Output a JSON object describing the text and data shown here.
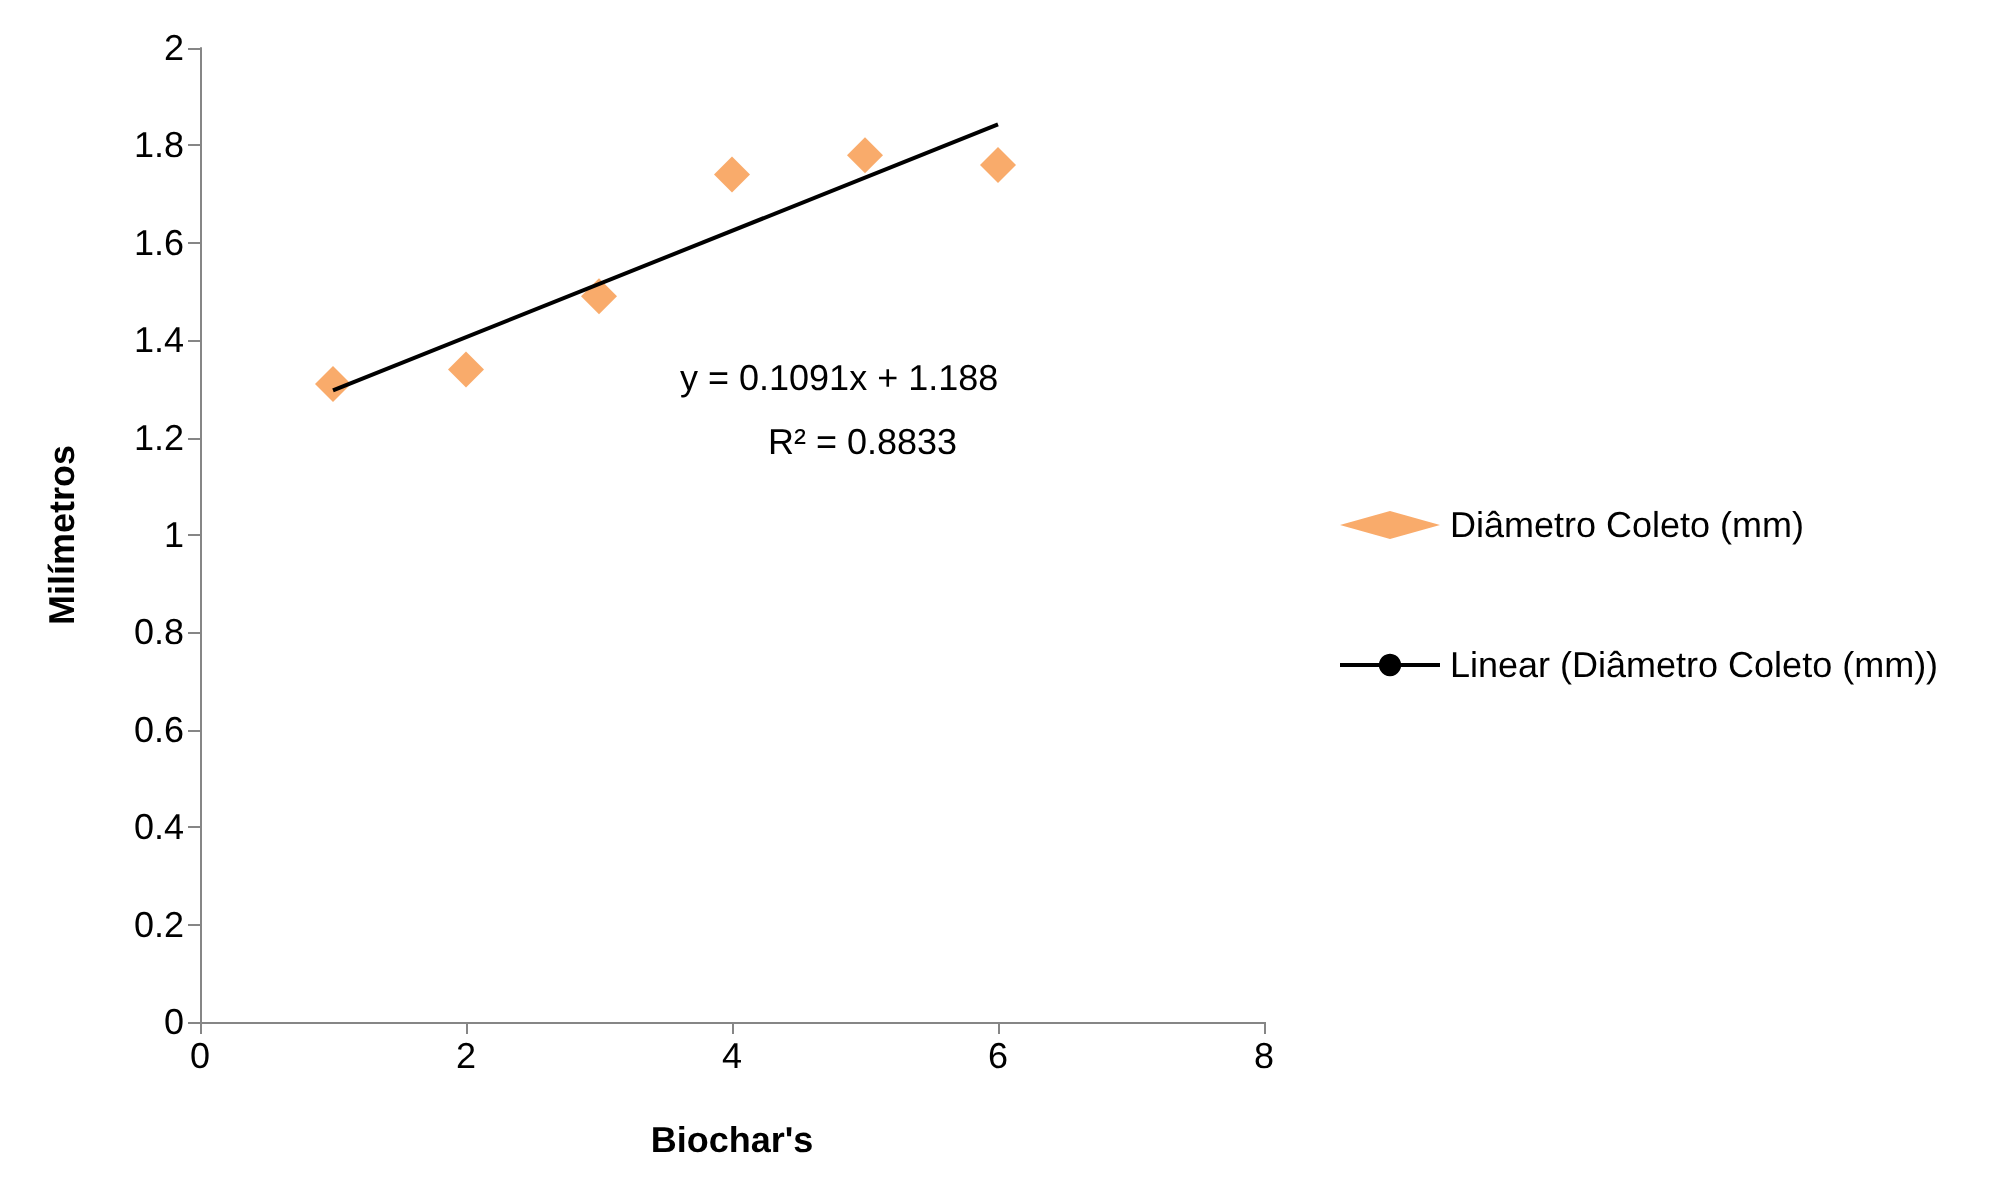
{
  "chart_data": {
    "type": "scatter",
    "xlabel": "Biochar's",
    "ylabel": "Milímetros",
    "series": [
      {
        "name": "Diâmetro Coleto (mm)",
        "color": "#f79646",
        "x": [
          1,
          2,
          3,
          4,
          5,
          6
        ],
        "values": [
          1.31,
          1.34,
          1.49,
          1.74,
          1.78,
          1.76
        ]
      },
      {
        "type": "line",
        "name": "Linear (Diâmetro Coleto (mm))",
        "color": "#000000",
        "x": [
          1,
          6
        ],
        "values": [
          1.297,
          1.843
        ],
        "line_style": "solid",
        "marker": "none"
      }
    ],
    "annotations": [
      "y = 0.1091x + 1.188",
      "R² = 0.8833"
    ],
    "xlim": [
      0,
      8
    ],
    "xticks": [
      0,
      2,
      4,
      6,
      8
    ],
    "ylim": [
      0,
      2
    ],
    "yticks": [
      0,
      0.2,
      0.4,
      0.6,
      0.8,
      1,
      1.2,
      1.4,
      1.6,
      1.8,
      2
    ],
    "marker": "diamond",
    "grid": false,
    "legend": "right"
  }
}
